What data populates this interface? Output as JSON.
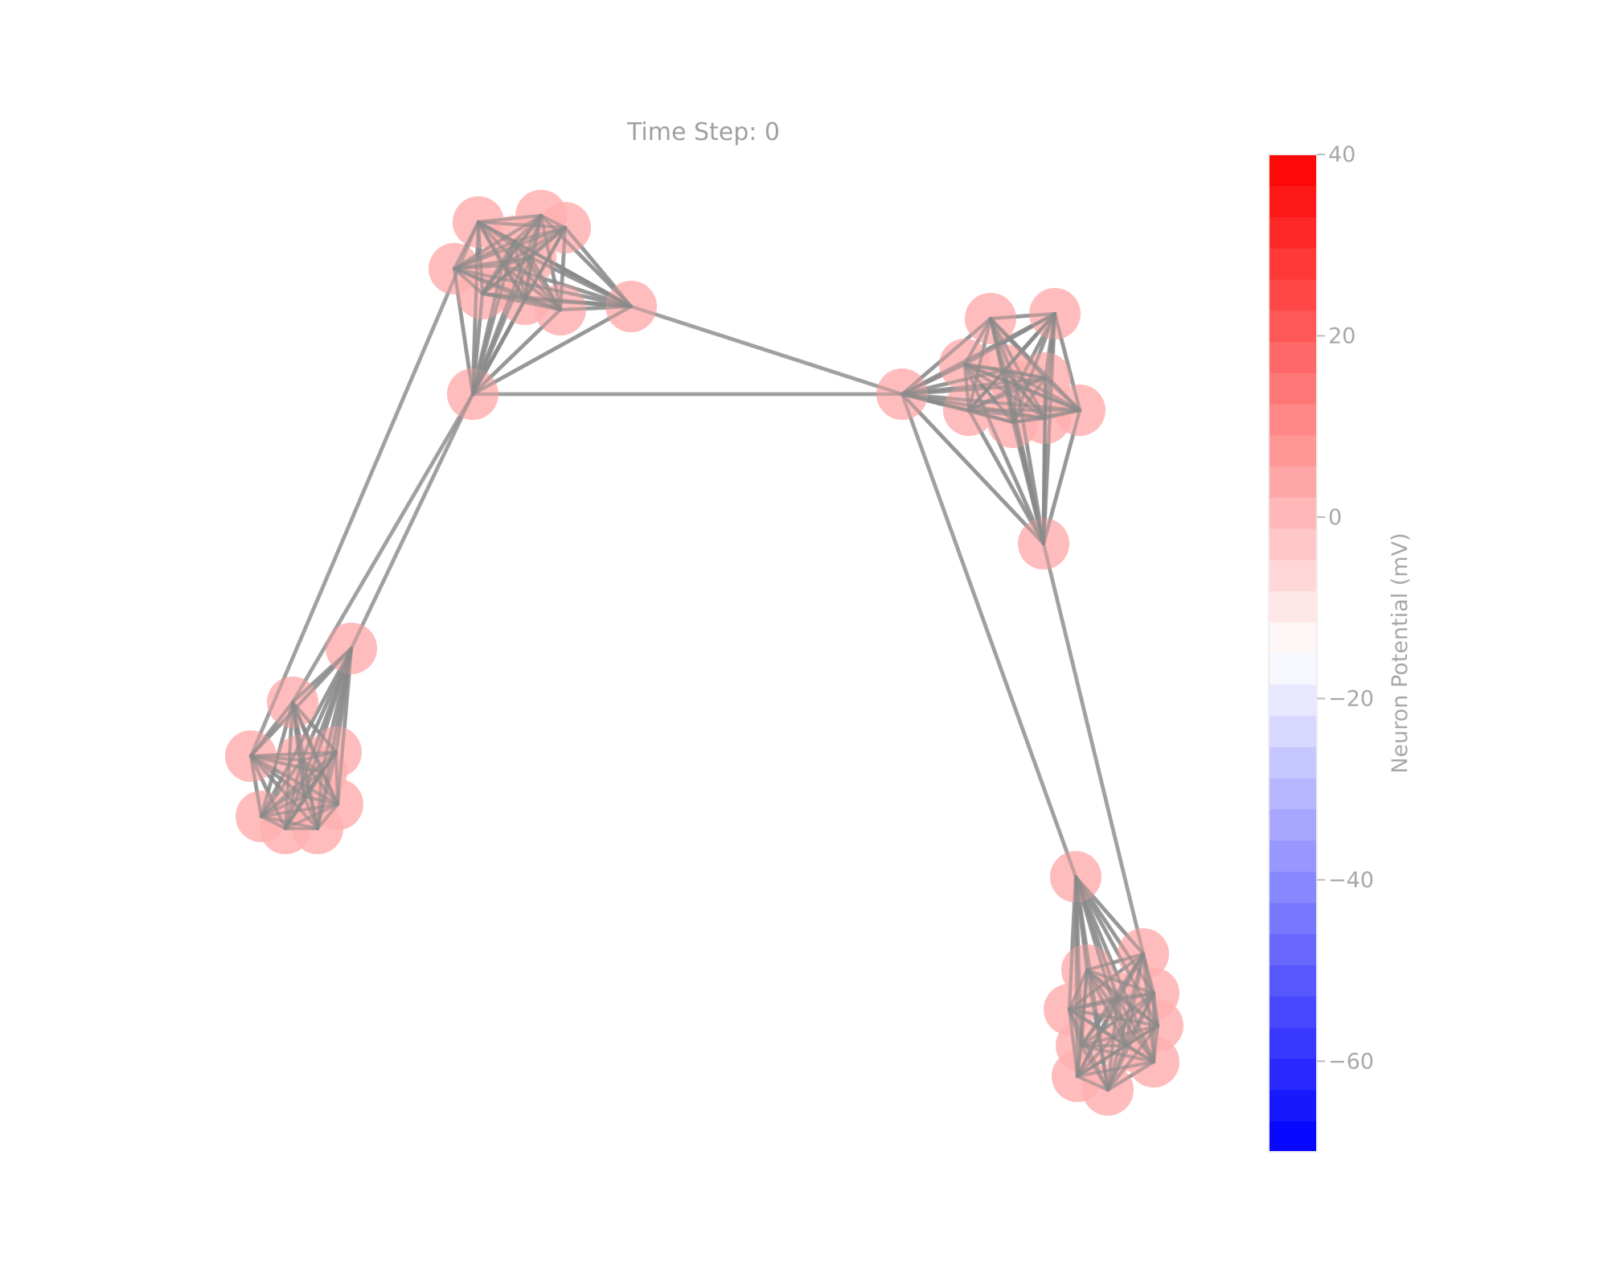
{
  "title": "Time Step: 0",
  "network": {
    "node_color": "#ffb0b0",
    "edge_color": "#8a8a8a",
    "clusters": 4
  },
  "colorbar": {
    "label": "Neuron Potential (mV)",
    "min": -70,
    "max": 40,
    "ticks": [
      40,
      20,
      0,
      -20,
      -40,
      -60
    ],
    "tick_labels": [
      "40",
      "20",
      "0",
      "−20",
      "−40",
      "−60"
    ],
    "colormap": [
      "#0000ff",
      "#ffffff",
      "#ff0000"
    ],
    "low_color": "#0000ff",
    "mid_color": "#ffffff",
    "high_color": "#ff0000"
  }
}
